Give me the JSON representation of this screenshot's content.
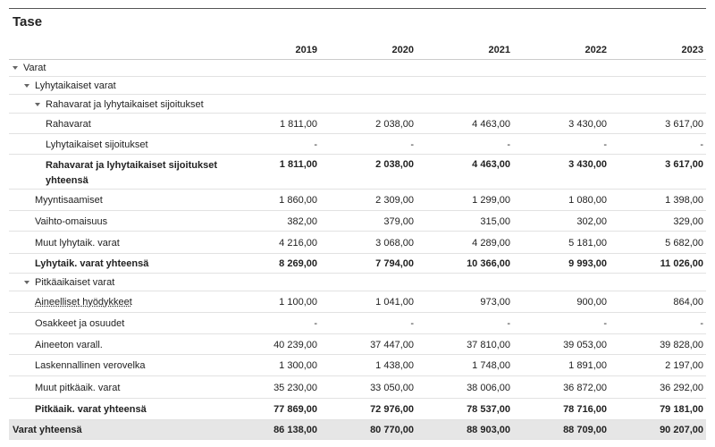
{
  "title": "Tase",
  "columns": [
    "2019",
    "2020",
    "2021",
    "2022",
    "2023"
  ],
  "rows": [
    {
      "label": "Varat"
    },
    {
      "label": "Lyhytaikaiset varat"
    },
    {
      "label": "Rahavarat ja lyhytaikaiset sijoitukset"
    },
    {
      "label": "Rahavarat",
      "values": [
        "1 811,00",
        "2 038,00",
        "4 463,00",
        "3 430,00",
        "3 617,00"
      ]
    },
    {
      "label": "Lyhytaikaiset sijoitukset",
      "values": [
        "-",
        "-",
        "-",
        "-",
        "-"
      ]
    },
    {
      "label": "Rahavarat ja lyhytaikaiset sijoitukset yhteensä",
      "values": [
        "1 811,00",
        "2 038,00",
        "4 463,00",
        "3 430,00",
        "3 617,00"
      ]
    },
    {
      "label": "Myyntisaamiset",
      "values": [
        "1 860,00",
        "2 309,00",
        "1 299,00",
        "1 080,00",
        "1 398,00"
      ]
    },
    {
      "label": "Vaihto-omaisuus",
      "values": [
        "382,00",
        "379,00",
        "315,00",
        "302,00",
        "329,00"
      ]
    },
    {
      "label": "Muut lyhytaik. varat",
      "values": [
        "4 216,00",
        "3 068,00",
        "4 289,00",
        "5 181,00",
        "5 682,00"
      ]
    },
    {
      "label": "Lyhytaik. varat yhteensä",
      "values": [
        "8 269,00",
        "7 794,00",
        "10 366,00",
        "9 993,00",
        "11 026,00"
      ]
    },
    {
      "label": "Pitkäaikaiset varat"
    },
    {
      "label": "Aineelliset hyödykkeet",
      "values": [
        "1 100,00",
        "1 041,00",
        "973,00",
        "900,00",
        "864,00"
      ]
    },
    {
      "label": "Osakkeet ja osuudet",
      "values": [
        "-",
        "-",
        "-",
        "-",
        "-"
      ]
    },
    {
      "label": "Aineeton varall.",
      "values": [
        "40 239,00",
        "37 447,00",
        "37 810,00",
        "39 053,00",
        "39 828,00"
      ]
    },
    {
      "label": "Laskennallinen verovelka",
      "values": [
        "1 300,00",
        "1 438,00",
        "1 748,00",
        "1 891,00",
        "2 197,00"
      ]
    },
    {
      "label": "Muut pitkäaik. varat",
      "values": [
        "35 230,00",
        "33 050,00",
        "38 006,00",
        "36 872,00",
        "36 292,00"
      ]
    },
    {
      "label": "Pitkäaik. varat yhteensä",
      "values": [
        "77 869,00",
        "72 976,00",
        "78 537,00",
        "78 716,00",
        "79 181,00"
      ]
    },
    {
      "label": "Varat yhteensä",
      "values": [
        "86 138,00",
        "80 770,00",
        "88 903,00",
        "88 709,00",
        "90 207,00"
      ]
    }
  ]
}
